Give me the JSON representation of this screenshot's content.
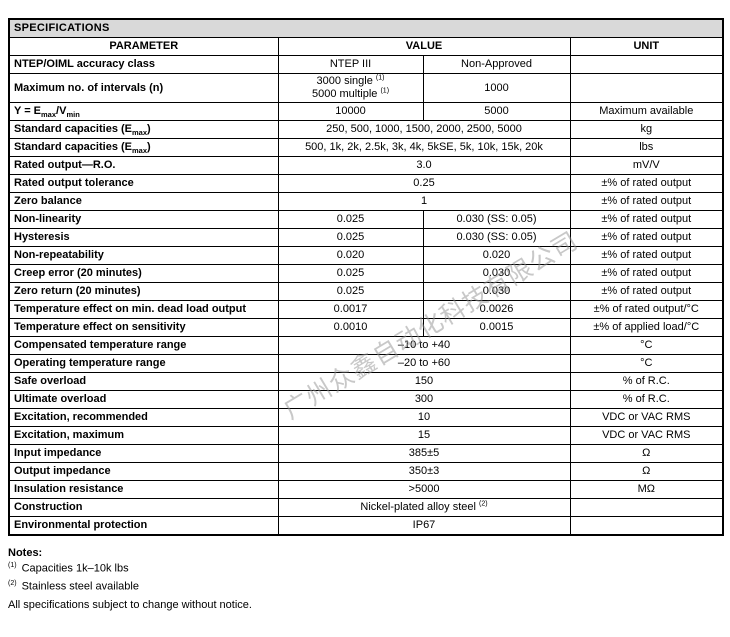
{
  "title": "SPECIFICATIONS",
  "header": {
    "parameter": "PARAMETER",
    "value": "VALUE",
    "unit": "UNIT"
  },
  "rows": [
    {
      "parameter": "NTEP/OIML accuracy class",
      "values": [
        "NTEP III",
        "Non-Approved"
      ],
      "unit": ""
    },
    {
      "parameter": "Maximum no. of intervals (n)",
      "values": [
        "3000 single ^{(1)}\n5000 multiple ^{(1)}",
        "1000"
      ],
      "unit": ""
    },
    {
      "parameter": "Y = E_{max}/V_{min}",
      "values": [
        "10000",
        "5000"
      ],
      "unit": "Maximum available"
    },
    {
      "parameter": "Standard capacities (E_{max})",
      "values": [
        "250, 500, 1000, 1500, 2000, 2500, 5000"
      ],
      "unit": "kg"
    },
    {
      "parameter": "Standard capacities (E_{max})",
      "values": [
        "500, 1k, 2k, 2.5k, 3k, 4k, 5kSE, 5k, 10k, 15k, 20k"
      ],
      "unit": "lbs"
    },
    {
      "parameter": "Rated output—R.O.",
      "values": [
        "3.0"
      ],
      "unit": "mV/V"
    },
    {
      "parameter": "Rated output tolerance",
      "values": [
        "0.25"
      ],
      "unit": "±% of rated output"
    },
    {
      "parameter": "Zero balance",
      "values": [
        "1"
      ],
      "unit": "±% of rated output"
    },
    {
      "parameter": "Non-linearity",
      "values": [
        "0.025",
        "0.030 (SS: 0.05)"
      ],
      "unit": "±% of rated output"
    },
    {
      "parameter": "Hysteresis",
      "values": [
        "0.025",
        "0.030 (SS: 0.05)"
      ],
      "unit": "±% of rated output"
    },
    {
      "parameter": "Non-repeatability",
      "values": [
        "0.020",
        "0.020"
      ],
      "unit": "±% of rated output"
    },
    {
      "parameter": "Creep error (20 minutes)",
      "values": [
        "0.025",
        "0.030"
      ],
      "unit": "±% of rated output"
    },
    {
      "parameter": "Zero return (20 minutes)",
      "values": [
        "0.025",
        "0.030"
      ],
      "unit": "±% of rated output"
    },
    {
      "parameter": "Temperature effect on min. dead load output",
      "values": [
        "0.0017",
        "0.0026"
      ],
      "unit": "±% of rated output/°C"
    },
    {
      "parameter": "Temperature effect on sensitivity",
      "values": [
        "0.0010",
        "0.0015"
      ],
      "unit": "±% of applied load/°C"
    },
    {
      "parameter": "Compensated temperature range",
      "values": [
        "–10 to +40"
      ],
      "unit": "°C"
    },
    {
      "parameter": "Operating temperature range",
      "values": [
        "–20 to +60"
      ],
      "unit": "°C"
    },
    {
      "parameter": "Safe overload",
      "values": [
        "150"
      ],
      "unit": "% of R.C."
    },
    {
      "parameter": "Ultimate overload",
      "values": [
        "300"
      ],
      "unit": "% of R.C."
    },
    {
      "parameter": "Excitation, recommended",
      "values": [
        "10"
      ],
      "unit": "VDC or VAC RMS"
    },
    {
      "parameter": "Excitation, maximum",
      "values": [
        "15"
      ],
      "unit": "VDC or VAC RMS"
    },
    {
      "parameter": "Input impedance",
      "values": [
        "385±5"
      ],
      "unit": "Ω"
    },
    {
      "parameter": "Output impedance",
      "values": [
        "350±3"
      ],
      "unit": "Ω"
    },
    {
      "parameter": "Insulation resistance",
      "values": [
        ">5000"
      ],
      "unit": "MΩ"
    },
    {
      "parameter": "Construction",
      "values": [
        "Nickel-plated alloy steel ^{(2)}"
      ],
      "unit": ""
    },
    {
      "parameter": "Environmental protection",
      "values": [
        "IP67"
      ],
      "unit": ""
    }
  ],
  "notes": {
    "heading": "Notes:",
    "items": [
      {
        "marker": "(1)",
        "text": "Capacities 1k–10k lbs"
      },
      {
        "marker": "(2)",
        "text": "Stainless steel available"
      },
      {
        "marker": "",
        "text": "All specifications subject to change without notice."
      }
    ]
  },
  "watermark": {
    "text": "广州众鑫自动化科技有限公司"
  },
  "colors": {
    "title_band": "#d9d9d9",
    "border": "#000000",
    "background": "#ffffff",
    "watermark": "#919191"
  }
}
